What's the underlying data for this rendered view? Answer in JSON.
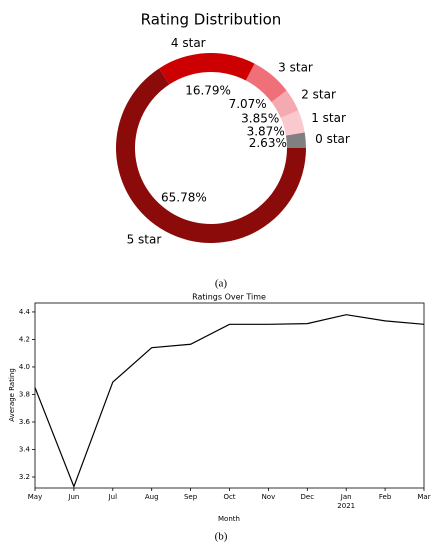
{
  "chart_data": [
    {
      "type": "pie",
      "title": "Rating Distribution",
      "caption": "(a)",
      "categories": [
        "0 star",
        "1 star",
        "2 star",
        "3 star",
        "4 star",
        "5 star"
      ],
      "values": [
        2.63,
        3.87,
        3.85,
        7.07,
        16.79,
        65.78
      ],
      "value_labels": [
        "2.63%",
        "3.87%",
        "3.85%",
        "7.07%",
        "16.79%",
        "65.78%"
      ],
      "colors": [
        "#808080",
        "#f9c9ce",
        "#f5a9b0",
        "#f0707a",
        "#cc0000",
        "#8b0b0b"
      ],
      "donut": true
    },
    {
      "type": "line",
      "title": "Ratings Over Time",
      "caption": "(b)",
      "x_label": "Month",
      "y_label": "Average Rating",
      "categories": [
        "May",
        "Jun",
        "Jul",
        "Aug",
        "Sep",
        "Oct",
        "Nov",
        "Dec",
        "Jan",
        "Feb",
        "Mar"
      ],
      "category_years": [
        null,
        null,
        null,
        null,
        null,
        null,
        null,
        null,
        "2021",
        null,
        null
      ],
      "values": [
        3.85,
        3.13,
        3.89,
        4.14,
        4.165,
        4.31,
        4.31,
        4.315,
        4.38,
        4.335,
        4.31
      ],
      "color": "#000000",
      "ylim": [
        3.12,
        4.465
      ],
      "yticks": [
        3.2,
        3.4,
        3.6,
        3.8,
        {
          "value": 4,
          "label": "4.0"
        },
        4.2,
        4.4
      ]
    }
  ]
}
